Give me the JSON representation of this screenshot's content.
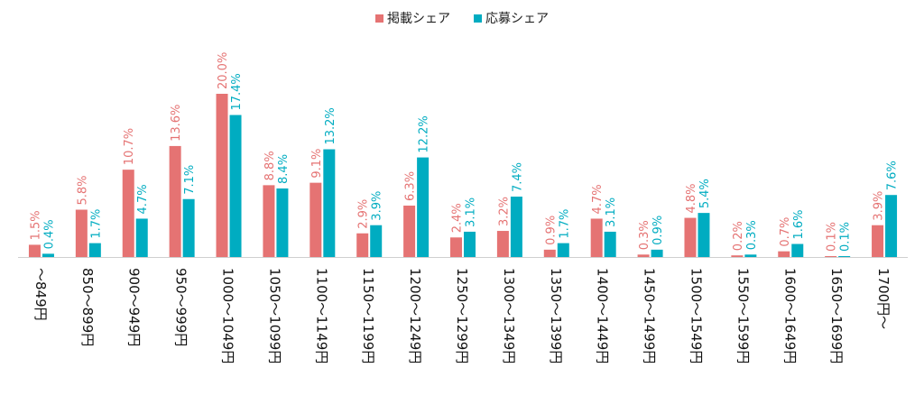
{
  "chart_data": {
    "type": "bar",
    "categories": [
      "～849円",
      "850～899円",
      "900～949円",
      "950～999円",
      "1000～1049円",
      "1050～1099円",
      "1100～1149円",
      "1150～1199円",
      "1200～1249円",
      "1250～1299円",
      "1300～1349円",
      "1350～1399円",
      "1400～1449円",
      "1450～1499円",
      "1500～1549円",
      "1550～1599円",
      "1600～1649円",
      "1650～1699円",
      "1700円～"
    ],
    "series": [
      {
        "name": "掲載シェア",
        "color": "#e57373",
        "values": [
          1.5,
          5.8,
          10.7,
          13.6,
          20.0,
          8.8,
          9.1,
          2.9,
          6.3,
          2.4,
          3.2,
          0.9,
          4.7,
          0.3,
          4.8,
          0.2,
          0.7,
          0.1,
          3.9
        ],
        "labels": [
          "1.5%",
          "5.8%",
          "10.7%",
          "13.6%",
          "20.0%",
          "8.8%",
          "9.1%",
          "2.9%",
          "6.3%",
          "2.4%",
          "3.2%",
          "0.9%",
          "4.7%",
          "0.3%",
          "4.8%",
          "0.2%",
          "0.7%",
          "0.1%",
          "3.9%"
        ]
      },
      {
        "name": "応募シェア",
        "color": "#00acc1",
        "values": [
          0.4,
          1.7,
          4.7,
          7.1,
          17.4,
          8.4,
          13.2,
          3.9,
          12.2,
          3.1,
          7.4,
          1.7,
          3.1,
          0.9,
          5.4,
          0.3,
          1.6,
          0.1,
          7.6
        ],
        "labels": [
          "0.4%",
          "1.7%",
          "4.7%",
          "7.1%",
          "17.4%",
          "8.4%",
          "13.2%",
          "3.9%",
          "12.2%",
          "3.1%",
          "7.4%",
          "1.7%",
          "3.1%",
          "0.9%",
          "5.4%",
          "0.3%",
          "1.6%",
          "0.1%",
          "7.6%"
        ]
      }
    ],
    "ylim": [
      0,
      20
    ],
    "legend_position": "top-center",
    "grid": false
  }
}
